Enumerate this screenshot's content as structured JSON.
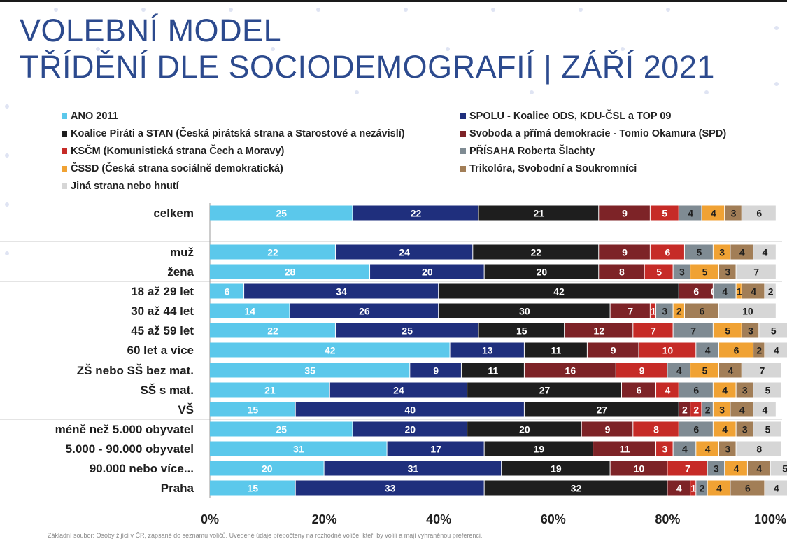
{
  "title": {
    "line1": "VOLEBNÍ MODEL",
    "line2": "TŘÍDĚNÍ DLE SOCIODEMOGRAFIÍ | ZÁŘÍ 2021"
  },
  "colors": {
    "title": "#2c4a8e",
    "ano": "#5bc8eb",
    "spolu": "#1f2f7d",
    "pirati": "#1e1e1e",
    "spd": "#7d2327",
    "kscm": "#c62b27",
    "prisaha": "#7f8b93",
    "cssd": "#f0a234",
    "trikolora": "#a27e57",
    "jina": "#d6d6d6"
  },
  "chart_data": {
    "type": "bar",
    "orientation": "horizontal",
    "stacked": true,
    "categories": [
      "celkem",
      "",
      "muž",
      "žena",
      "18 až 29 let",
      "30 až 44 let",
      "45 až 59 let",
      "60 let a více",
      "ZŠ nebo SŠ bez mat.",
      "SŠ s mat.",
      "VŠ",
      "méně než 5.000 obyvatel",
      "5.000 - 90.000 obyvatel",
      "90.000 nebo více...",
      "Praha"
    ],
    "xlim": [
      0,
      100
    ],
    "xticks": [
      "0%",
      "20%",
      "40%",
      "60%",
      "80%",
      "100%"
    ],
    "legend_position": "top",
    "series": [
      {
        "name": "ANO 2011",
        "values": [
          25,
          null,
          22,
          28,
          6,
          14,
          22,
          42,
          35,
          21,
          15,
          25,
          31,
          20,
          15
        ]
      },
      {
        "name": "SPOLU - Koalice ODS, KDU-ČSL a TOP 09",
        "values": [
          22,
          null,
          24,
          20,
          34,
          26,
          25,
          13,
          9,
          24,
          40,
          20,
          17,
          31,
          33
        ]
      },
      {
        "name": "Koalice Piráti a STAN (Česká pirátská strana a Starostové a nezávislí)",
        "values": [
          21,
          null,
          22,
          20,
          42,
          30,
          15,
          11,
          11,
          27,
          27,
          20,
          19,
          19,
          32
        ]
      },
      {
        "name": "Svoboda a přímá demokracie - Tomio Okamura (SPD)",
        "values": [
          9,
          null,
          9,
          8,
          6,
          7,
          12,
          9,
          16,
          6,
          2,
          9,
          11,
          10,
          4
        ]
      },
      {
        "name": "KSČM (Komunistická strana Čech a Moravy)",
        "values": [
          5,
          null,
          6,
          5,
          0,
          1,
          7,
          10,
          9,
          4,
          2,
          8,
          3,
          7,
          1
        ]
      },
      {
        "name": "PŘÍSAHA Roberta Šlachty",
        "values": [
          4,
          null,
          5,
          3,
          4,
          3,
          7,
          4,
          4,
          6,
          2,
          6,
          4,
          3,
          2
        ]
      },
      {
        "name": "ČSSD (Česká strana sociálně demokratická)",
        "values": [
          4,
          null,
          3,
          5,
          1,
          2,
          5,
          6,
          5,
          4,
          3,
          4,
          4,
          4,
          4
        ]
      },
      {
        "name": "Trikolóra, Svobodní a Soukromníci",
        "values": [
          3,
          null,
          4,
          3,
          4,
          6,
          3,
          2,
          4,
          3,
          4,
          3,
          3,
          4,
          6
        ]
      },
      {
        "name": "Jiná strana nebo hnutí",
        "values": [
          6,
          null,
          4,
          7,
          2,
          10,
          5,
          4,
          7,
          5,
          4,
          5,
          8,
          5,
          4
        ]
      }
    ]
  },
  "footnote": "Základní soubor: Osoby žijící v ČR, zapsané do seznamu voličů. Uvedené údaje přepočteny na rozhodné voliče, kteří by volili a mají vyhraněnou preferenci."
}
